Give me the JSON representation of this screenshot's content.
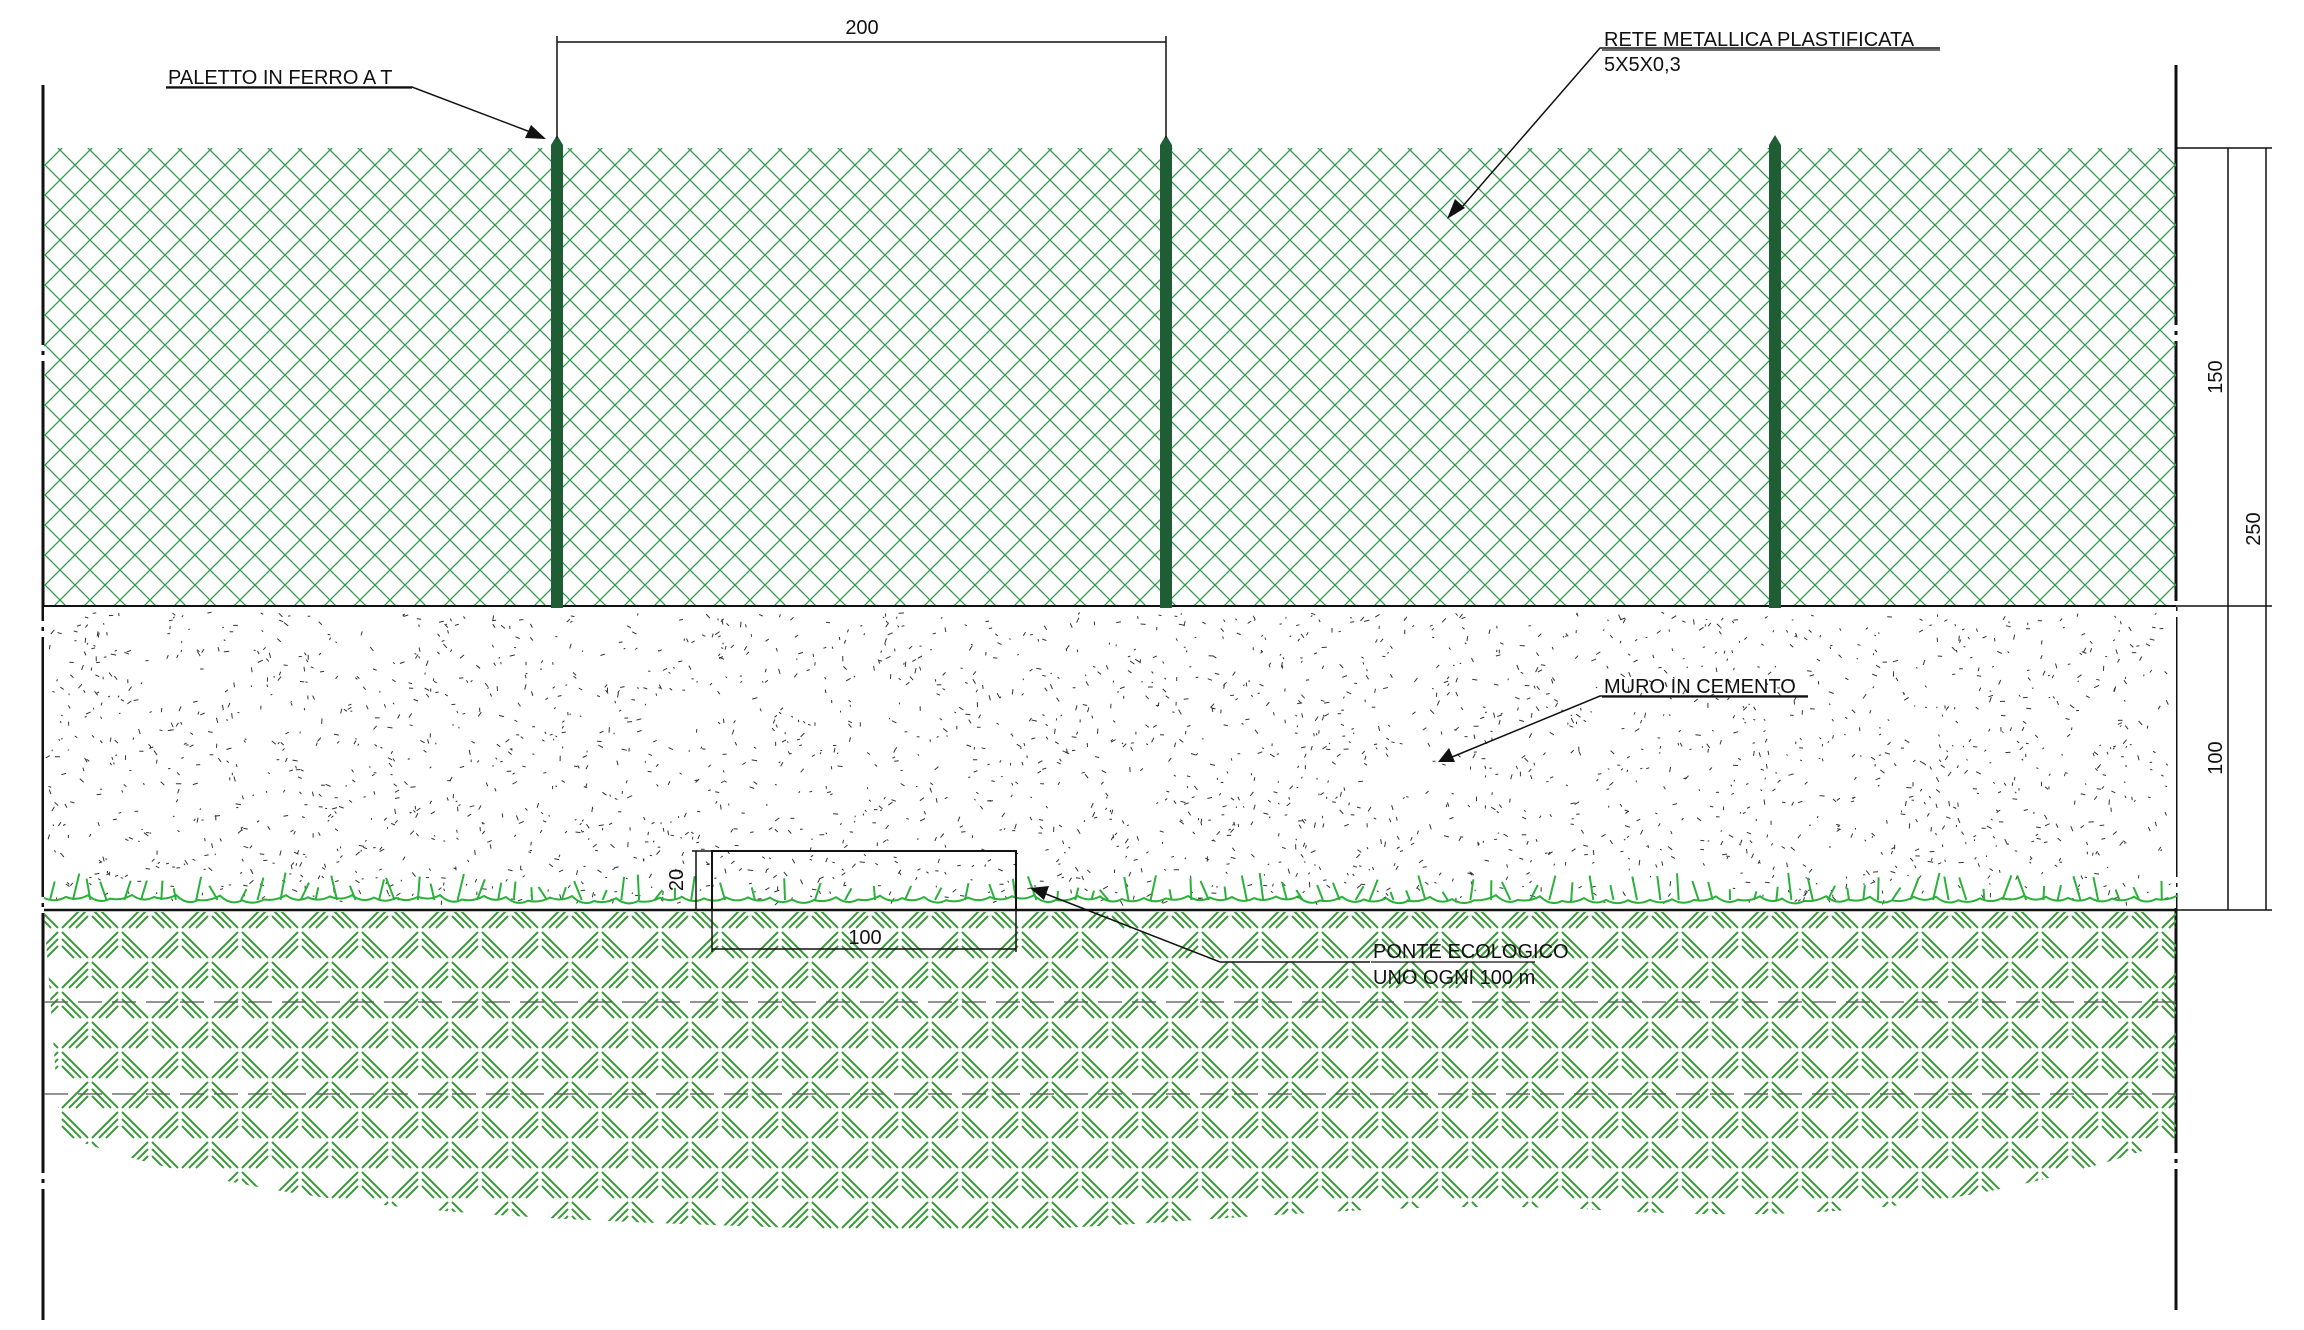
{
  "annotations": {
    "post_label": "PALETTO IN FERRO A T",
    "mesh_label": "RETE METALLICA PLASTIFICATA",
    "mesh_spec": "5X5X0,3",
    "wall_label": "MURO IN CEMENTO",
    "bridge_label": "PONTE ECOLOGICO",
    "bridge_spacing": "UNO OGNI 100 m"
  },
  "dimensions": {
    "post_spacing": "200",
    "mesh_height": "150",
    "total_height": "250",
    "wall_height": "100",
    "bridge_height": "20",
    "bridge_width": "100"
  },
  "colors": {
    "mesh": "#2e9a4a",
    "post": "#1f5e34",
    "grass": "#2ab13a",
    "soil_hatch": "#3c9a3c",
    "concrete_speckle": "#333333",
    "line": "#111111"
  }
}
